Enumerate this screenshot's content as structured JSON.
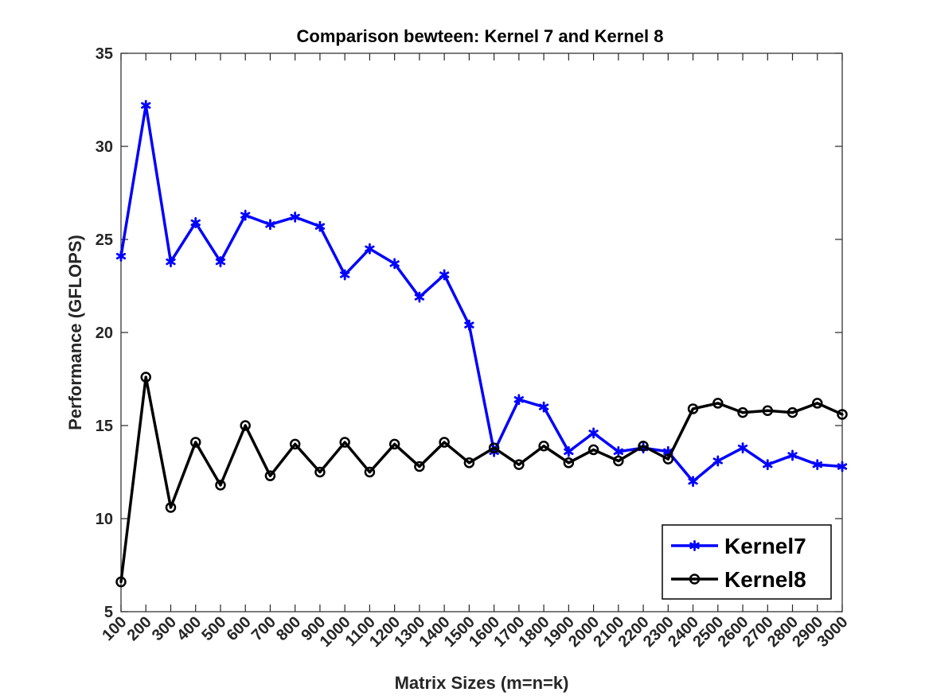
{
  "chart_data": {
    "type": "line",
    "title": "Comparison bewteen: Kernel 7 and Kernel 8",
    "xlabel": "Matrix Sizes (m=n=k)",
    "ylabel": "Performance (GFLOPS)",
    "ylim": [
      5,
      35
    ],
    "yticks": [
      5,
      10,
      15,
      20,
      25,
      30,
      35
    ],
    "x": [
      100,
      200,
      300,
      400,
      500,
      600,
      700,
      800,
      900,
      1000,
      1100,
      1200,
      1300,
      1400,
      1500,
      1600,
      1700,
      1800,
      1900,
      2000,
      2100,
      2200,
      2300,
      2400,
      2500,
      2600,
      2700,
      2800,
      2900,
      3000
    ],
    "legend_position": "bottom-right",
    "series": [
      {
        "name": "Kernel7",
        "color": "#0000ff",
        "marker": "asterisk",
        "values": [
          24.1,
          32.2,
          23.8,
          25.9,
          23.8,
          26.3,
          25.8,
          26.2,
          25.7,
          23.1,
          24.5,
          23.7,
          21.9,
          23.1,
          20.4,
          13.6,
          16.4,
          16.0,
          13.6,
          14.6,
          13.6,
          13.8,
          13.6,
          12.0,
          13.1,
          13.8,
          12.9,
          13.4,
          12.9,
          12.8
        ]
      },
      {
        "name": "Kernel8",
        "color": "#000000",
        "marker": "circle",
        "values": [
          6.6,
          17.6,
          10.6,
          14.1,
          11.8,
          15.0,
          12.3,
          14.0,
          12.5,
          14.1,
          12.5,
          14.0,
          12.8,
          14.1,
          13.0,
          13.8,
          12.9,
          13.9,
          13.0,
          13.7,
          13.1,
          13.9,
          13.2,
          15.9,
          16.2,
          15.7,
          15.8,
          15.7,
          16.2,
          15.6
        ]
      }
    ]
  }
}
